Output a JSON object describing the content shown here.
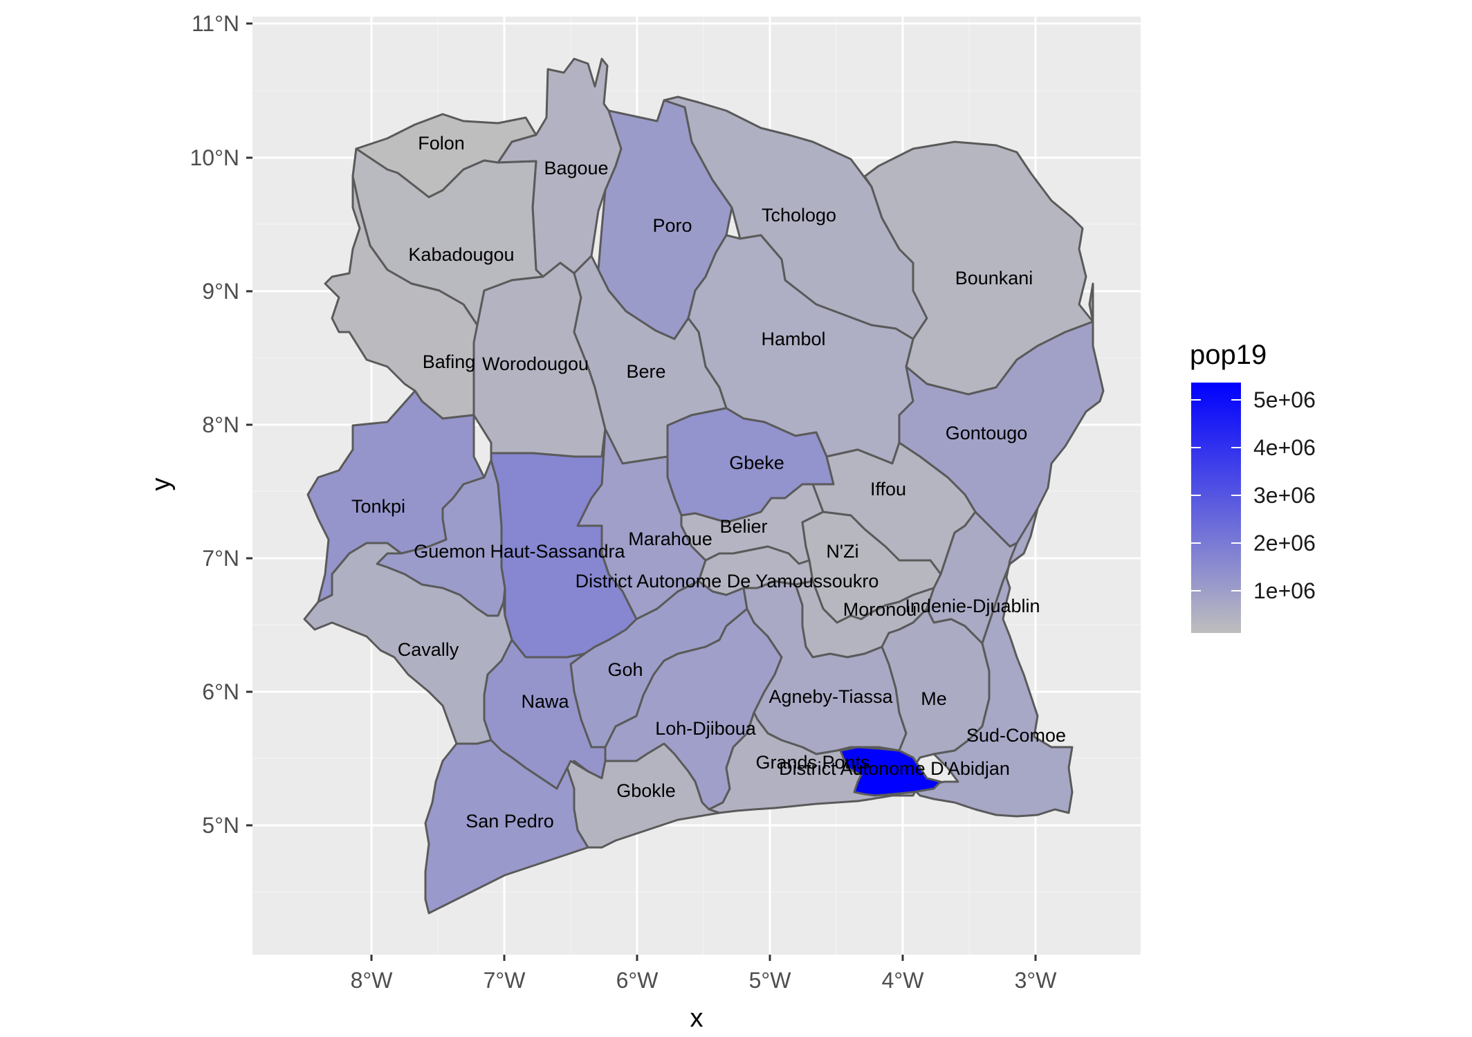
{
  "chart_data": {
    "type": "choropleth-map",
    "xlabel": "x",
    "ylabel": "y",
    "x_ticks": [
      "8°W",
      "7°W",
      "6°W",
      "5°W",
      "4°W",
      "3°W"
    ],
    "y_ticks": [
      "11°N",
      "10°N",
      "9°N",
      "8°N",
      "7°N",
      "6°N",
      "5°N"
    ],
    "legend": {
      "title": "pop19",
      "labels": [
        "5e+06",
        "4e+06",
        "3e+06",
        "2e+06",
        "1e+06"
      ],
      "low_color": "#bebebe",
      "high_color": "#0000ff",
      "position": "right"
    },
    "regions": [
      {
        "name": "Folon",
        "pop19": 100000
      },
      {
        "name": "Bagoue",
        "pop19": 430000
      },
      {
        "name": "Poro",
        "pop19": 1050000
      },
      {
        "name": "Tchologo",
        "pop19": 470000
      },
      {
        "name": "Kabadougou",
        "pop19": 230000
      },
      {
        "name": "Bounkani",
        "pop19": 330000
      },
      {
        "name": "Hambol",
        "pop19": 550000
      },
      {
        "name": "Bafing",
        "pop19": 200000
      },
      {
        "name": "Worodougou",
        "pop19": 400000
      },
      {
        "name": "Bere",
        "pop19": 470000
      },
      {
        "name": "Gontougo",
        "pop19": 900000
      },
      {
        "name": "Gbeke",
        "pop19": 1270000
      },
      {
        "name": "Tonkpi",
        "pop19": 1230000
      },
      {
        "name": "Iffou",
        "pop19": 350000
      },
      {
        "name": "Belier",
        "pop19": 380000
      },
      {
        "name": "Marahoue",
        "pop19": 960000
      },
      {
        "name": "N'Zi",
        "pop19": 290000
      },
      {
        "name": "Guemon",
        "pop19": 1030000
      },
      {
        "name": "Haut-Sassandra",
        "pop19": 1630000
      },
      {
        "name": "District Autonome De Yamoussoukro",
        "pop19": 380000
      },
      {
        "name": "Moronou",
        "pop19": 370000
      },
      {
        "name": "Indenie-Djuablin",
        "pop19": 640000
      },
      {
        "name": "Cavally",
        "pop19": 480000
      },
      {
        "name": "Goh",
        "pop19": 990000
      },
      {
        "name": "Nawa",
        "pop19": 1220000
      },
      {
        "name": "Agneby-Tiassa",
        "pop19": 680000
      },
      {
        "name": "Me",
        "pop19": 610000
      },
      {
        "name": "Loh-Djiboua",
        "pop19": 950000
      },
      {
        "name": "Sud-Comoe",
        "pop19": 730000
      },
      {
        "name": "Grands Ponts",
        "pop19": 450000
      },
      {
        "name": "District Autonome D'Abidjan",
        "pop19": 5300000
      },
      {
        "name": "Gbokle",
        "pop19": 370000
      },
      {
        "name": "San Pedro",
        "pop19": 1100000
      }
    ]
  }
}
